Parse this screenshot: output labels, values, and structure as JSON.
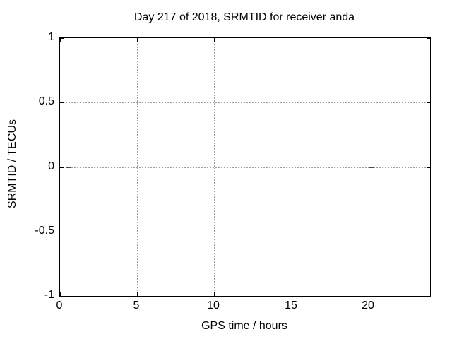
{
  "chart_data": {
    "type": "scatter",
    "title": "Day 217 of 2018, SRMTID for receiver anda",
    "xlabel": "GPS time / hours",
    "ylabel": "SRMTID / TECUs",
    "xlim": [
      0,
      24
    ],
    "ylim": [
      -1,
      1
    ],
    "xticks": [
      0,
      5,
      10,
      15,
      20
    ],
    "xtick_labels": [
      "0",
      "5",
      "10",
      "15",
      "20"
    ],
    "yticks": [
      1,
      0.5,
      0,
      -0.5,
      -1
    ],
    "ytick_labels": [
      "1",
      "0.5",
      "0",
      "-0.5",
      "-1"
    ],
    "grid": true,
    "legend": "none",
    "series": [
      {
        "marker": "plus",
        "color": "#ff0000",
        "points": [
          [
            0.57,
            0
          ],
          [
            20.15,
            0
          ]
        ]
      }
    ]
  },
  "colors": {
    "background": "#ffffff",
    "axis": "#000000",
    "grid": "#9c9c9c",
    "text": "#000000",
    "point": "#ff0000"
  }
}
